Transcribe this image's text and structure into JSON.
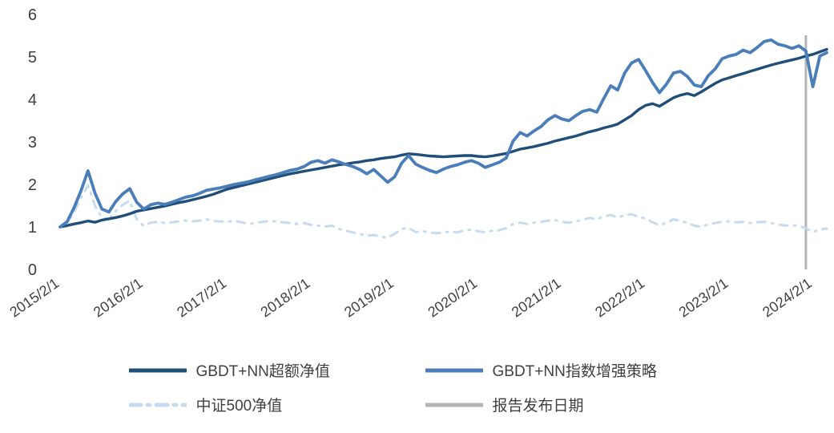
{
  "chart_data": {
    "type": "line",
    "title": "",
    "xlabel": "",
    "ylabel": "",
    "ylim": [
      0,
      6
    ],
    "y_ticks": [
      0,
      1,
      2,
      3,
      4,
      5,
      6
    ],
    "grid": false,
    "legend_position": "bottom",
    "axis_color": "#404040",
    "x_start": "2015/2",
    "x_interval": "monthly",
    "x_ticks": [
      {
        "label": "2015/2/1",
        "index": 0
      },
      {
        "label": "2016/2/1",
        "index": 12
      },
      {
        "label": "2017/2/1",
        "index": 24
      },
      {
        "label": "2018/2/1",
        "index": 36
      },
      {
        "label": "2019/2/1",
        "index": 48
      },
      {
        "label": "2020/2/1",
        "index": 60
      },
      {
        "label": "2021/2/1",
        "index": 72
      },
      {
        "label": "2022/2/1",
        "index": 84
      },
      {
        "label": "2023/2/1",
        "index": 96
      },
      {
        "label": "2024/2/1",
        "index": 108
      }
    ],
    "series": [
      {
        "name": "GBDT+NN超额净值",
        "color": "#1f4e79",
        "style": "solid",
        "values": [
          1.0,
          1.03,
          1.07,
          1.1,
          1.14,
          1.11,
          1.16,
          1.19,
          1.22,
          1.26,
          1.31,
          1.37,
          1.4,
          1.43,
          1.46,
          1.49,
          1.53,
          1.57,
          1.6,
          1.64,
          1.68,
          1.72,
          1.77,
          1.83,
          1.89,
          1.93,
          1.97,
          2.01,
          2.05,
          2.09,
          2.13,
          2.17,
          2.21,
          2.25,
          2.28,
          2.31,
          2.34,
          2.37,
          2.4,
          2.43,
          2.46,
          2.48,
          2.51,
          2.53,
          2.56,
          2.58,
          2.61,
          2.63,
          2.65,
          2.69,
          2.72,
          2.71,
          2.69,
          2.67,
          2.66,
          2.65,
          2.66,
          2.67,
          2.68,
          2.68,
          2.66,
          2.65,
          2.67,
          2.7,
          2.73,
          2.78,
          2.83,
          2.86,
          2.89,
          2.93,
          2.97,
          3.02,
          3.06,
          3.1,
          3.14,
          3.19,
          3.24,
          3.28,
          3.33,
          3.37,
          3.42,
          3.52,
          3.62,
          3.76,
          3.86,
          3.9,
          3.84,
          3.94,
          4.04,
          4.1,
          4.14,
          4.09,
          4.18,
          4.28,
          4.38,
          4.46,
          4.51,
          4.56,
          4.61,
          4.66,
          4.71,
          4.76,
          4.81,
          4.85,
          4.89,
          4.93,
          4.97,
          5.02,
          5.06,
          5.12,
          5.18
        ]
      },
      {
        "name": "GBDT+NN指数增强策略",
        "color": "#4a7ebb",
        "style": "solid",
        "values": [
          1.0,
          1.12,
          1.45,
          1.85,
          2.32,
          1.8,
          1.42,
          1.35,
          1.6,
          1.78,
          1.9,
          1.58,
          1.42,
          1.52,
          1.56,
          1.53,
          1.58,
          1.64,
          1.7,
          1.73,
          1.79,
          1.86,
          1.89,
          1.92,
          1.96,
          2.0,
          2.03,
          2.06,
          2.11,
          2.15,
          2.19,
          2.23,
          2.28,
          2.33,
          2.36,
          2.42,
          2.52,
          2.56,
          2.5,
          2.58,
          2.53,
          2.47,
          2.42,
          2.35,
          2.25,
          2.35,
          2.2,
          2.05,
          2.18,
          2.5,
          2.68,
          2.48,
          2.4,
          2.33,
          2.28,
          2.36,
          2.42,
          2.46,
          2.52,
          2.56,
          2.5,
          2.4,
          2.46,
          2.52,
          2.62,
          3.02,
          3.22,
          3.14,
          3.26,
          3.36,
          3.52,
          3.62,
          3.54,
          3.5,
          3.62,
          3.72,
          3.76,
          3.7,
          4.02,
          4.32,
          4.22,
          4.62,
          4.86,
          4.94,
          4.68,
          4.4,
          4.16,
          4.36,
          4.62,
          4.66,
          4.54,
          4.34,
          4.3,
          4.56,
          4.72,
          4.96,
          5.02,
          5.06,
          5.16,
          5.1,
          5.22,
          5.36,
          5.4,
          5.3,
          5.26,
          5.2,
          5.26,
          5.14,
          4.3,
          5.02,
          5.1
        ]
      },
      {
        "name": "中证500净值",
        "color": "#c6dbef",
        "style": "dashed",
        "values": [
          1.0,
          1.08,
          1.35,
          1.68,
          1.98,
          1.5,
          1.22,
          1.18,
          1.38,
          1.52,
          1.62,
          1.18,
          1.02,
          1.1,
          1.12,
          1.09,
          1.11,
          1.13,
          1.15,
          1.13,
          1.15,
          1.18,
          1.14,
          1.13,
          1.12,
          1.14,
          1.11,
          1.07,
          1.09,
          1.12,
          1.14,
          1.13,
          1.11,
          1.09,
          1.07,
          1.09,
          1.05,
          1.03,
          1.01,
          1.03,
          0.95,
          0.91,
          0.87,
          0.84,
          0.79,
          0.81,
          0.77,
          0.75,
          0.84,
          0.95,
          0.98,
          0.88,
          0.9,
          0.87,
          0.85,
          0.87,
          0.89,
          0.87,
          0.92,
          0.93,
          0.9,
          0.87,
          0.91,
          0.92,
          0.97,
          1.07,
          1.1,
          1.07,
          1.1,
          1.12,
          1.15,
          1.16,
          1.12,
          1.1,
          1.13,
          1.17,
          1.21,
          1.18,
          1.25,
          1.28,
          1.22,
          1.28,
          1.3,
          1.24,
          1.2,
          1.11,
          1.04,
          1.1,
          1.18,
          1.14,
          1.1,
          1.03,
          1.0,
          1.06,
          1.09,
          1.12,
          1.13,
          1.11,
          1.12,
          1.09,
          1.11,
          1.12,
          1.09,
          1.06,
          1.03,
          1.04,
          1.02,
          0.97,
          0.88,
          0.94,
          0.96
        ]
      }
    ],
    "report_line": {
      "label": "报告发布日期",
      "color": "#b5b5b5",
      "index": 107
    },
    "legend": [
      {
        "label": "GBDT+NN超额净值",
        "color": "#1f4e79",
        "style": "solid"
      },
      {
        "label": "GBDT+NN指数增强策略",
        "color": "#4a7ebb",
        "style": "solid"
      },
      {
        "label": "中证500净值",
        "color": "#c6dbef",
        "style": "dashed"
      },
      {
        "label": "报告发布日期",
        "color": "#b5b5b5",
        "style": "solid"
      }
    ]
  }
}
